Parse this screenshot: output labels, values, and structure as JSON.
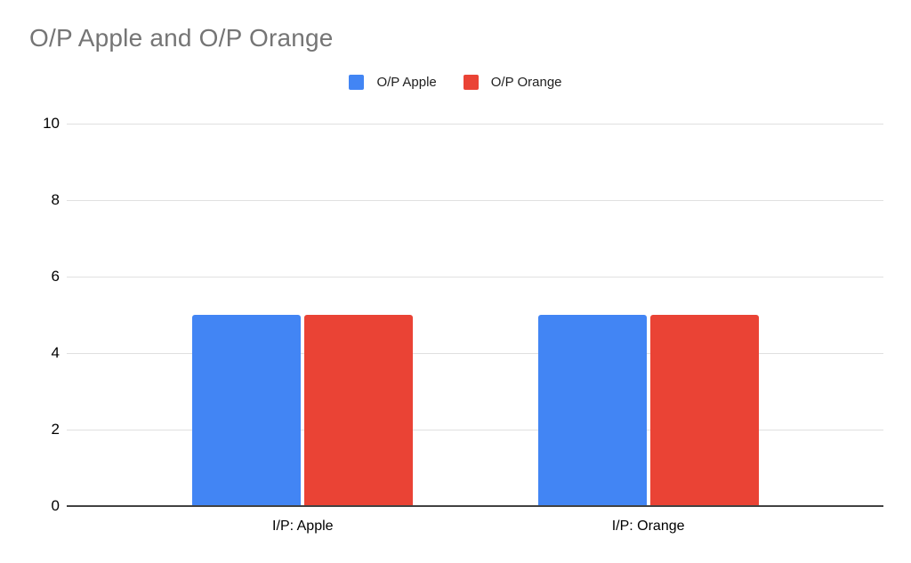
{
  "title": "O/P Apple and O/P Orange",
  "legend": [
    {
      "label": "O/P Apple",
      "color": "#4285F4"
    },
    {
      "label": "O/P Orange",
      "color": "#EA4335"
    }
  ],
  "chart_data": {
    "type": "bar",
    "title": "O/P Apple and O/P Orange",
    "categories": [
      "I/P: Apple",
      "I/P: Orange"
    ],
    "series": [
      {
        "name": "O/P Apple",
        "color": "#4285F4",
        "values": [
          5,
          5
        ]
      },
      {
        "name": "O/P Orange",
        "color": "#EA4335",
        "values": [
          5,
          5
        ]
      }
    ],
    "xlabel": "",
    "ylabel": "",
    "ylim": [
      0,
      10
    ],
    "yticks": [
      0,
      2,
      4,
      6,
      8,
      10
    ],
    "grid": true,
    "legend_position": "top-center"
  },
  "colors": {
    "background": "#ffffff",
    "title_text": "#757575",
    "legend_text": "#1f1f1f",
    "axis_tick_text": "#000000",
    "gridline": "#e0e0e0",
    "baseline": "#424242"
  }
}
